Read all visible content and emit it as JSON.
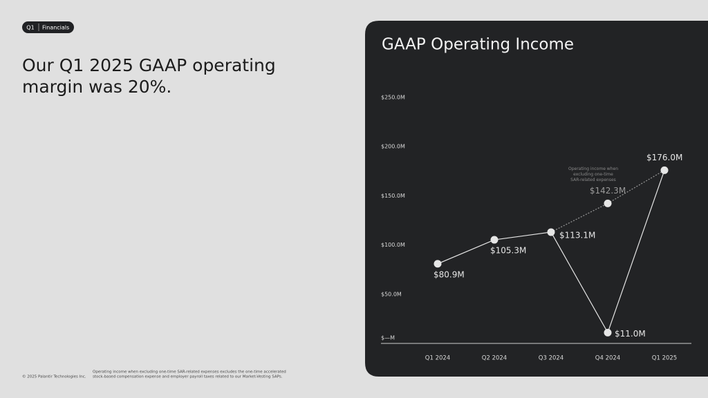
{
  "badge": {
    "quarter": "Q1",
    "section": "Financials"
  },
  "headline": [
    "Our Q1 2025 GAAP operating",
    "margin was 20%."
  ],
  "footer": {
    "copyright": "© 2025 Palantir Technologies Inc.",
    "note": [
      "Operating income when excluding one-time SAR-related expenses excludes the one-time accelerated",
      "stock-based compensation expense and employer payroll taxes related to our Market-Vesting SAPs."
    ]
  },
  "chart_data": {
    "type": "line",
    "title": "GAAP Operating Income",
    "categories": [
      "Q1 2024",
      "Q2 2024",
      "Q3 2024",
      "Q4 2024",
      "Q1 2025"
    ],
    "series": [
      {
        "color": "#e6e6e6",
        "style": "solid",
        "values": [
          80.9,
          105.3,
          113.1,
          11.0,
          176.0
        ],
        "value_labels": [
          "$80.9M",
          "$105.3M",
          "$113.1M",
          "$11.0M",
          "$176.0M"
        ]
      },
      {
        "color": "#9a9a9a",
        "style": "dotted",
        "values": [
          null,
          null,
          113.1,
          142.3,
          176.0
        ],
        "value_labels": [
          null,
          null,
          null,
          "$142.3M",
          null
        ]
      }
    ],
    "annotation": [
      "Operating income when",
      "excluding one-time",
      "SAR-related expenses"
    ],
    "ylim": [
      0,
      250
    ],
    "yticks": [
      {
        "value": 0,
        "label": "$—M"
      },
      {
        "value": 50,
        "label": "$50.0M"
      },
      {
        "value": 100,
        "label": "$100.0M"
      },
      {
        "value": 150,
        "label": "$150.0M"
      },
      {
        "value": 200,
        "label": "$200.0M"
      },
      {
        "value": 250,
        "label": "$250.0M"
      }
    ],
    "grid": false
  }
}
